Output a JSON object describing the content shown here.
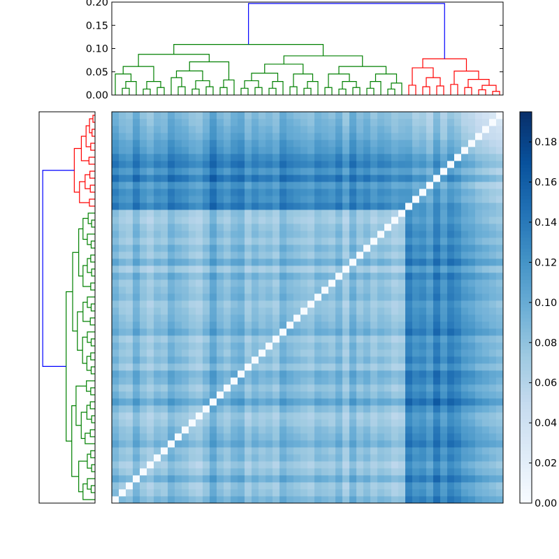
{
  "chart_data": {
    "type": "heatmap",
    "title": "",
    "xlabel": "",
    "ylabel": "",
    "n": 56,
    "colormap": "Blues",
    "colormap_stops": [
      "#f7fbff",
      "#deebf7",
      "#c6dbef",
      "#9ecae1",
      "#6baed6",
      "#4292c6",
      "#2171b5",
      "#08519c",
      "#08306b"
    ],
    "value_range": [
      0,
      0.195
    ],
    "colorbar": {
      "ticks": [
        0.0,
        0.02,
        0.04,
        0.06,
        0.08,
        0.1,
        0.12,
        0.14,
        0.16,
        0.18
      ],
      "tick_labels": [
        "0.00",
        "0.02",
        "0.04",
        "0.06",
        "0.08",
        "0.10",
        "0.12",
        "0.14",
        "0.16",
        "0.18"
      ]
    },
    "dendrogram": {
      "height_axis": {
        "ticks": [
          0.0,
          0.05,
          0.1,
          0.15,
          0.2
        ],
        "tick_labels": [
          "0.00",
          "0.05",
          "0.10",
          "0.15",
          "0.20"
        ],
        "ylim": [
          0,
          0.2
        ]
      },
      "clusters": [
        {
          "color": "#008000",
          "leaves": [
            0,
            41
          ]
        },
        {
          "color": "#ff0000",
          "leaves": [
            42,
            55
          ]
        }
      ],
      "above_threshold_color": "#0000ff",
      "leaf_heights": [
        0.055,
        0.04,
        0.035,
        0.06,
        0.04,
        0.03,
        0.045,
        0.04,
        0.06,
        0.05,
        0.045,
        0.035,
        0.03,
        0.045,
        0.07,
        0.05,
        0.04,
        0.055,
        0.06,
        0.035,
        0.05,
        0.04,
        0.045,
        0.035,
        0.06,
        0.05,
        0.045,
        0.04,
        0.035,
        0.05,
        0.045,
        0.04,
        0.055,
        0.03,
        0.06,
        0.04,
        0.05,
        0.035,
        0.045,
        0.04,
        0.03,
        0.035,
        0.07,
        0.055,
        0.06,
        0.045,
        0.075,
        0.05,
        0.07,
        0.06,
        0.045,
        0.04,
        0.03,
        0.025,
        0.02,
        0.015
      ],
      "row_dendrogram_orientation": "left",
      "column_dendrogram_orientation": "top"
    },
    "legend": "none",
    "grid": false
  }
}
